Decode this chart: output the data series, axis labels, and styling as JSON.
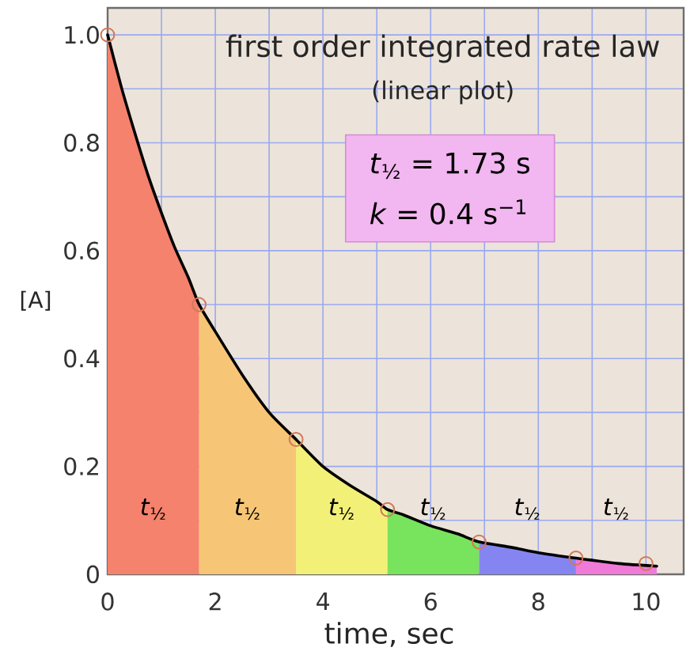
{
  "chart_data": {
    "type": "line",
    "title": "first order integrated rate law",
    "subtitle": "(linear plot)",
    "xlabel": "time, sec",
    "ylabel": "[A]",
    "xlim": [
      0,
      10.7
    ],
    "ylim": [
      0,
      1.05
    ],
    "xticks": [
      0,
      {
        "value": 1,
        "label": null
      },
      2,
      {
        "value": 3,
        "label": null
      },
      4,
      {
        "value": 5,
        "label": null
      },
      6,
      {
        "value": 7,
        "label": null
      },
      8,
      {
        "value": 9,
        "label": null
      },
      10
    ],
    "yticks": [
      0,
      {
        "value": 0.1,
        "label": null
      },
      0.2,
      {
        "value": 0.3,
        "label": null
      },
      0.4,
      {
        "value": 0.5,
        "label": null
      },
      0.6,
      {
        "value": 0.7,
        "label": null
      },
      0.8,
      {
        "value": 0.9,
        "label": null
      },
      {
        "value": 1,
        "label": "1.0"
      }
    ],
    "grid": true,
    "annotations": [
      "*t*$_{½}$ = 1.73 s",
      "*k* = 0.4 s$^{−1}$"
    ],
    "series": [
      {
        "type": "area",
        "name": "*t*$_{½}$",
        "color": "#f5826c",
        "x": [
          0,
          0.25,
          0.5,
          0.75,
          1,
          1.25,
          1.5,
          1.7
        ],
        "values": [
          1,
          0.905,
          0.82,
          0.74,
          0.67,
          0.605,
          0.55,
          0.5
        ]
      },
      {
        "type": "area",
        "name": "*t*$_{½}$",
        "color": "#f6c676",
        "x": [
          1.7,
          2,
          2.5,
          3,
          3.5
        ],
        "values": [
          0.5,
          0.45,
          0.37,
          0.3,
          0.25
        ]
      },
      {
        "type": "area",
        "name": "*t*$_{½}$",
        "color": "#f3f078",
        "x": [
          3.5,
          4,
          4.5,
          5,
          5.2
        ],
        "values": [
          0.25,
          0.2,
          0.165,
          0.135,
          0.12
        ]
      },
      {
        "type": "area",
        "name": "*t*$_{½}$",
        "color": "#78e35c",
        "x": [
          5.2,
          5.5,
          6,
          6.5,
          6.9
        ],
        "values": [
          0.12,
          0.11,
          0.09,
          0.075,
          0.06
        ]
      },
      {
        "type": "area",
        "name": "*t*$_{½}$",
        "color": "#8585f2",
        "x": [
          6.9,
          7.5,
          8,
          8.7
        ],
        "values": [
          0.06,
          0.05,
          0.04,
          0.03
        ]
      },
      {
        "type": "area",
        "name": "*t*$_{½}$",
        "color": "#f07ad8",
        "x": [
          8.7,
          9.5,
          10.2
        ],
        "values": [
          0.03,
          0.02,
          0.015
        ]
      },
      {
        "color": "#000000",
        "line_style": "solid",
        "x": [
          0,
          0.25,
          0.5,
          0.75,
          1,
          1.25,
          1.5,
          1.7,
          2,
          2.5,
          3,
          3.5,
          4,
          4.5,
          5,
          5.2,
          5.5,
          6,
          6.5,
          6.9,
          7.5,
          8,
          8.7,
          9.5,
          10.2
        ],
        "values": [
          1,
          0.905,
          0.82,
          0.74,
          0.67,
          0.605,
          0.55,
          0.5,
          0.45,
          0.37,
          0.3,
          0.25,
          0.2,
          0.165,
          0.135,
          0.12,
          0.11,
          0.09,
          0.075,
          0.06,
          0.05,
          0.04,
          0.03,
          0.02,
          0.015
        ]
      },
      {
        "type": "scatter",
        "color": "#d2785a",
        "marker": "circle",
        "x": [
          0,
          1.7,
          3.5,
          5.2,
          6.9,
          8.7,
          10
        ],
        "values": [
          1,
          0.5,
          0.25,
          0.12,
          0.06,
          0.03,
          0.02
        ]
      }
    ]
  }
}
